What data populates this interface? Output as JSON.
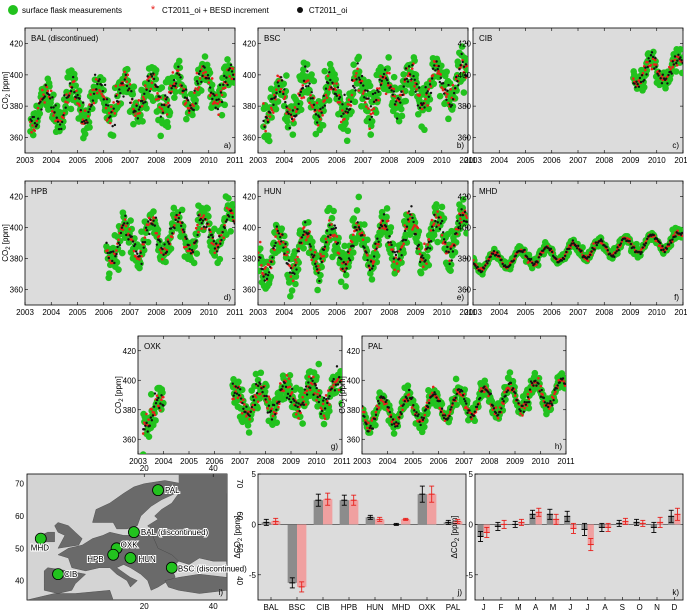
{
  "legend": {
    "items": [
      {
        "label": "surface flask measurements",
        "color": "#22c21e",
        "marker": "circle"
      },
      {
        "label": "CT2011_oi + BESD increment",
        "color": "#e8201c",
        "marker": "star"
      },
      {
        "label": "CT2011_oi",
        "color": "#111111",
        "marker": "dot"
      }
    ]
  },
  "colors": {
    "panel_bg": "#dcdcdc",
    "flask": "#22c21e",
    "besd": "#e8201c",
    "ct": "#111111",
    "ocean": "#d4d4d4",
    "land": "#6a6a6a",
    "bar_gray": "#8c8c8c",
    "bar_red": "#f0a0a0"
  },
  "chart_data": [
    {
      "type": "scatter",
      "panel_title": "BAL (discontinued)",
      "panel_letter": "a)",
      "ylabel": "CO2 [ppm]",
      "x_range": [
        2003,
        2011
      ],
      "ylim": [
        350,
        430
      ],
      "yticks": [
        360,
        380,
        400,
        420
      ],
      "xticks": [
        "2003",
        "2004",
        "2005",
        "2006",
        "2007",
        "2008",
        "2009",
        "2010",
        "2011"
      ],
      "station": {
        "start": 2003.2,
        "end": 2011,
        "mean": 378,
        "trend": 1.9,
        "amp": 10,
        "noise": 6
      }
    },
    {
      "type": "scatter",
      "panel_title": "BSC",
      "panel_letter": "b)",
      "ylabel": "",
      "x_range": [
        2003,
        2011
      ],
      "ylim": [
        350,
        430
      ],
      "yticks": [
        360,
        380,
        400,
        420
      ],
      "xticks": [
        "2003",
        "2004",
        "2005",
        "2006",
        "2007",
        "2008",
        "2009",
        "2010",
        "2011"
      ],
      "station": {
        "start": 2003.2,
        "end": 2011,
        "mean": 380,
        "trend": 2.0,
        "amp": 11,
        "noise": 7
      }
    },
    {
      "type": "scatter",
      "panel_title": "CIB",
      "panel_letter": "c)",
      "ylabel": "",
      "x_range": [
        2003,
        2011
      ],
      "ylim": [
        350,
        430
      ],
      "yticks": [
        360,
        380,
        400,
        420
      ],
      "xticks": [
        "2003",
        "2004",
        "2005",
        "2006",
        "2007",
        "2008",
        "2009",
        "2010",
        "2011"
      ],
      "station": {
        "start": 2009.1,
        "end": 2011,
        "mean": 390,
        "trend": 1.8,
        "amp": 7,
        "noise": 4
      }
    },
    {
      "type": "scatter",
      "panel_title": "HPB",
      "panel_letter": "d)",
      "ylabel": "CO2 [ppm]",
      "x_range": [
        2003,
        2011
      ],
      "ylim": [
        350,
        430
      ],
      "yticks": [
        360,
        380,
        400,
        420
      ],
      "xticks": [
        "2003",
        "2004",
        "2005",
        "2006",
        "2007",
        "2008",
        "2009",
        "2010",
        "2011"
      ],
      "station": {
        "start": 2006.1,
        "end": 2011,
        "mean": 384,
        "trend": 1.9,
        "amp": 11,
        "noise": 5
      }
    },
    {
      "type": "scatter",
      "panel_title": "HUN",
      "panel_letter": "e)",
      "ylabel": "",
      "x_range": [
        2003,
        2011
      ],
      "ylim": [
        350,
        430
      ],
      "yticks": [
        360,
        380,
        400,
        420
      ],
      "xticks": [
        "2003",
        "2004",
        "2005",
        "2006",
        "2007",
        "2008",
        "2009",
        "2010",
        "2011"
      ],
      "station": {
        "start": 2003.0,
        "end": 2011,
        "mean": 381,
        "trend": 1.9,
        "amp": 13,
        "noise": 6
      }
    },
    {
      "type": "scatter",
      "panel_title": "MHD",
      "panel_letter": "f)",
      "ylabel": "",
      "x_range": [
        2003,
        2011
      ],
      "ylim": [
        350,
        430
      ],
      "yticks": [
        360,
        380,
        400,
        420
      ],
      "xticks": [
        "2003",
        "2004",
        "2005",
        "2006",
        "2007",
        "2008",
        "2009",
        "2010",
        "2011"
      ],
      "station": {
        "start": 2003.0,
        "end": 2011,
        "mean": 377,
        "trend": 1.9,
        "amp": 5,
        "noise": 1.5
      }
    },
    {
      "type": "scatter",
      "panel_title": "OXK",
      "panel_letter": "g)",
      "ylabel": "CO2 [ppm]",
      "x_range": [
        2003,
        2011
      ],
      "ylim": [
        350,
        430
      ],
      "yticks": [
        360,
        380,
        400,
        420
      ],
      "xticks": [
        "2003",
        "2004",
        "2005",
        "2006",
        "2007",
        "2008",
        "2009",
        "2010",
        "2011"
      ],
      "station": {
        "start": 2003.2,
        "end": 2011,
        "gap": [
          2004.0,
          2006.7
        ],
        "mean": 377,
        "trend": 1.9,
        "amp": 9,
        "noise": 6
      }
    },
    {
      "type": "scatter",
      "panel_title": "PAL",
      "panel_letter": "h)",
      "ylabel": "CO2 [ppm]",
      "x_range": [
        2003,
        2011
      ],
      "ylim": [
        350,
        430
      ],
      "yticks": [
        360,
        380,
        400,
        420
      ],
      "xticks": [
        "2003",
        "2004",
        "2005",
        "2006",
        "2007",
        "2008",
        "2009",
        "2010",
        "2011"
      ],
      "station": {
        "start": 2003.0,
        "end": 2011,
        "mean": 377,
        "trend": 1.9,
        "amp": 9,
        "noise": 3
      }
    },
    {
      "type": "bar",
      "panel_letter": "j)",
      "ylabel": "ΔCO2 [ppm]",
      "categories": [
        "BAL",
        "BSC",
        "CIB",
        "HPB",
        "HUN",
        "MHD",
        "OXK",
        "PAL"
      ],
      "ylim": [
        -7.5,
        5
      ],
      "yticks": [
        5,
        0,
        -5
      ],
      "series": [
        {
          "values": [
            0.2,
            -5.8,
            2.4,
            2.4,
            0.7,
            0.0,
            3.0,
            0.2
          ],
          "errors": [
            0.3,
            0.5,
            0.6,
            0.5,
            0.2,
            0.1,
            0.8,
            0.2
          ]
        },
        {
          "values": [
            0.3,
            -6.2,
            2.5,
            2.4,
            0.5,
            0.5,
            3.0,
            0.3
          ],
          "errors": [
            0.3,
            0.5,
            0.6,
            0.5,
            0.2,
            0.1,
            0.8,
            0.2
          ]
        }
      ]
    },
    {
      "type": "bar",
      "panel_letter": "k)",
      "ylabel": "ΔCO2 [ppm]",
      "categories": [
        "J",
        "F",
        "M",
        "A",
        "M",
        "J",
        "J",
        "A",
        "S",
        "O",
        "N",
        "D"
      ],
      "ylim": [
        -7.5,
        5
      ],
      "yticks": [
        5,
        0,
        -5
      ],
      "series": [
        {
          "values": [
            -1.2,
            -0.2,
            0.0,
            1.0,
            1.0,
            0.8,
            -0.5,
            -0.3,
            0.1,
            0.2,
            -0.3,
            0.8
          ],
          "errors": [
            0.5,
            0.4,
            0.3,
            0.4,
            0.5,
            0.5,
            0.6,
            0.4,
            0.3,
            0.3,
            0.5,
            0.6
          ]
        },
        {
          "values": [
            -0.8,
            0.0,
            0.2,
            1.2,
            0.5,
            -0.4,
            -2.0,
            -0.3,
            0.3,
            0.1,
            0.2,
            1.0
          ],
          "errors": [
            0.5,
            0.4,
            0.3,
            0.4,
            0.5,
            0.5,
            0.6,
            0.4,
            0.3,
            0.3,
            0.5,
            0.6
          ]
        }
      ]
    }
  ],
  "map": {
    "panel_letter": "i)",
    "top_ticks": [
      "20",
      "40"
    ],
    "bottom_ticks": [
      "20",
      "40"
    ],
    "left_ticks": [
      "70",
      "60",
      "50",
      "40"
    ],
    "right_ticks": [
      "70",
      "60",
      "50",
      "40"
    ],
    "stations": [
      {
        "label": "PAL",
        "lon": 24,
        "lat": 68
      },
      {
        "label": "BAL (discontinued)",
        "lon": 17,
        "lat": 55
      },
      {
        "label": "MHD",
        "lon": -10,
        "lat": 53
      },
      {
        "label": "OXK",
        "lon": 12,
        "lat": 50
      },
      {
        "label": "HPB",
        "lon": 11,
        "lat": 48
      },
      {
        "label": "HUN",
        "lon": 16,
        "lat": 47
      },
      {
        "label": "BSC (discontinued)",
        "lon": 28,
        "lat": 44
      },
      {
        "label": "CIB",
        "lon": -5,
        "lat": 42
      }
    ]
  }
}
